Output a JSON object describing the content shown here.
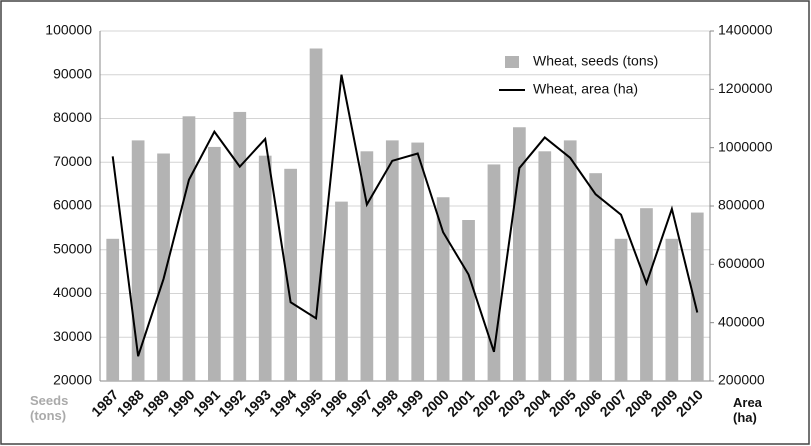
{
  "chart_data": {
    "type": "bar_line",
    "categories": [
      "1987",
      "1988",
      "1989",
      "1990",
      "1991",
      "1992",
      "1993",
      "1994",
      "1995",
      "1996",
      "1997",
      "1998",
      "1999",
      "2000",
      "2001",
      "2002",
      "2003",
      "2004",
      "2005",
      "2006",
      "2007",
      "2008",
      "2009",
      "2010"
    ],
    "series": [
      {
        "name": "Wheat, seeds (tons)",
        "type": "bar",
        "color": "#b3b3b3",
        "values": [
          52500,
          75000,
          72000,
          80500,
          73500,
          81500,
          71500,
          68500,
          96000,
          61000,
          72500,
          75000,
          74500,
          62000,
          56800,
          69500,
          78000,
          72500,
          75000,
          67500,
          52500,
          59500,
          52500,
          58500
        ]
      },
      {
        "name": "Wheat, area (ha)",
        "type": "line",
        "axis": "y2",
        "color": "#000000",
        "values": [
          970000,
          285000,
          550000,
          890000,
          1055000,
          935000,
          1030000,
          470000,
          415000,
          1250000,
          805000,
          955000,
          980000,
          710000,
          565000,
          300000,
          930000,
          1035000,
          965000,
          840000,
          770000,
          535000,
          790000,
          435000
        ]
      }
    ],
    "y_label": "Seeds (tons)",
    "y2_label": "Area (ha)",
    "ylim": [
      20000,
      100000
    ],
    "yticks": [
      20000,
      30000,
      40000,
      50000,
      60000,
      70000,
      80000,
      90000,
      100000
    ],
    "y2lim": [
      200000,
      1400000
    ],
    "y2ticks": [
      200000,
      400000,
      600000,
      800000,
      1000000,
      1200000,
      1400000
    ],
    "grid": true,
    "legend": "top-right"
  }
}
